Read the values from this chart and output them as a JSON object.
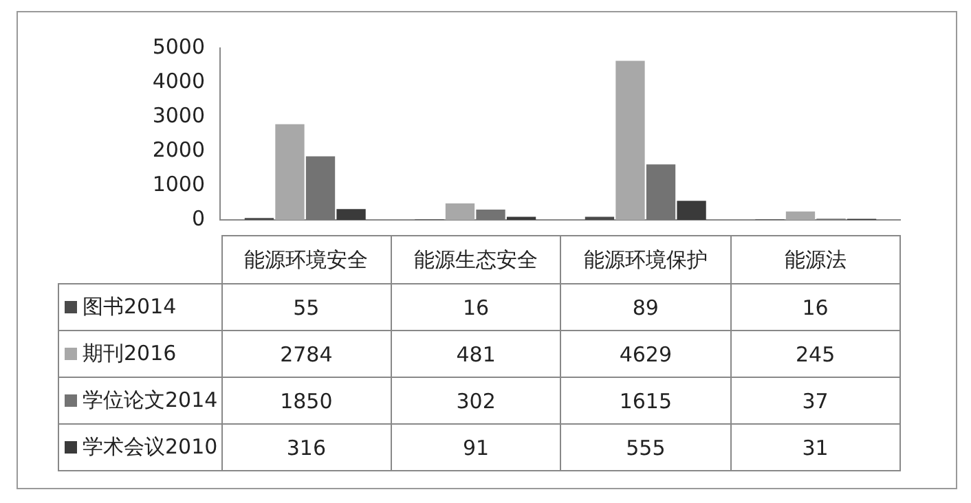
{
  "chart_data": {
    "type": "bar",
    "categories": [
      "能源环境安全",
      "能源生态安全",
      "能源环境保护",
      "能源法"
    ],
    "series": [
      {
        "name": "图书2014",
        "color": "#4a4a4a",
        "values": [
          55,
          16,
          89,
          16
        ]
      },
      {
        "name": "期刊2016",
        "color": "#a8a8a8",
        "values": [
          2784,
          481,
          4629,
          245
        ]
      },
      {
        "name": "学位论文2014",
        "color": "#737373",
        "values": [
          1850,
          302,
          1615,
          37
        ]
      },
      {
        "name": "学术会议2010",
        "color": "#3a3a3a",
        "values": [
          316,
          91,
          555,
          31
        ]
      }
    ],
    "ylim": [
      0,
      5000
    ],
    "yticks": [
      0,
      1000,
      2000,
      3000,
      4000,
      5000
    ],
    "grid": false,
    "legend": "bottom",
    "data_labels": true
  }
}
